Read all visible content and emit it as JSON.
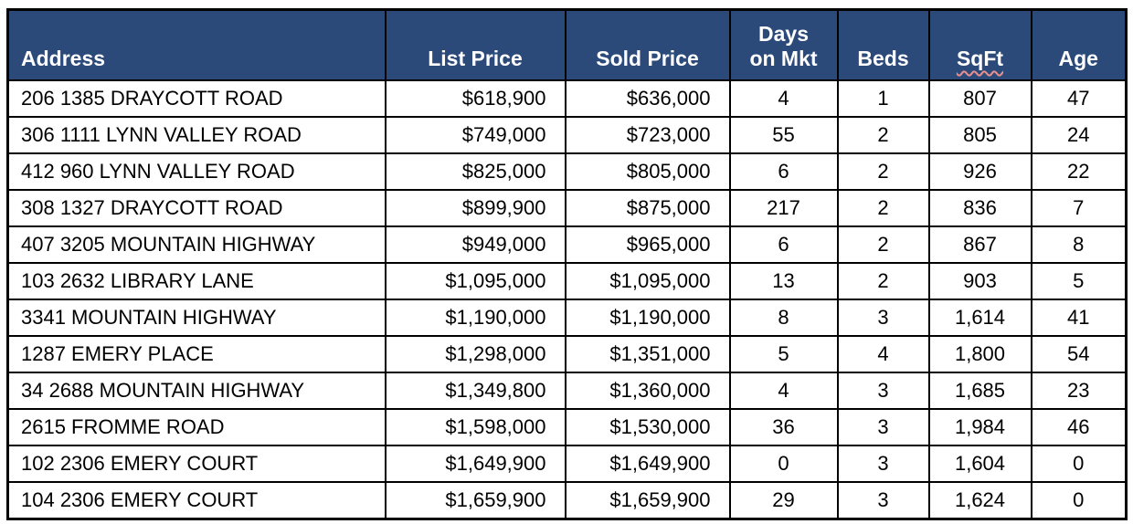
{
  "table": {
    "columns": [
      {
        "name": "address",
        "label": "Address"
      },
      {
        "name": "list-price",
        "label": "List Price"
      },
      {
        "name": "sold-price",
        "label": "Sold Price"
      },
      {
        "name": "days-on-mkt",
        "label": "Days\non Mkt"
      },
      {
        "name": "beds",
        "label": "Beds"
      },
      {
        "name": "sqft",
        "label": "SqFt",
        "spellcheck_underline": true
      },
      {
        "name": "age",
        "label": "Age"
      }
    ],
    "rows": [
      [
        "206 1385 DRAYCOTT ROAD",
        "$618,900",
        "$636,000",
        "4",
        "1",
        "807",
        "47"
      ],
      [
        "306 1111 LYNN VALLEY ROAD",
        "$749,000",
        "$723,000",
        "55",
        "2",
        "805",
        "24"
      ],
      [
        "412 960 LYNN VALLEY ROAD",
        "$825,000",
        "$805,000",
        "6",
        "2",
        "926",
        "22"
      ],
      [
        "308 1327 DRAYCOTT ROAD",
        "$899,900",
        "$875,000",
        "217",
        "2",
        "836",
        "7"
      ],
      [
        "407 3205 MOUNTAIN HIGHWAY",
        "$949,000",
        "$965,000",
        "6",
        "2",
        "867",
        "8"
      ],
      [
        "103 2632 LIBRARY LANE",
        "$1,095,000",
        "$1,095,000",
        "13",
        "2",
        "903",
        "5"
      ],
      [
        "3341 MOUNTAIN HIGHWAY",
        "$1,190,000",
        "$1,190,000",
        "8",
        "3",
        "1,614",
        "41"
      ],
      [
        "1287 EMERY PLACE",
        "$1,298,000",
        "$1,351,000",
        "5",
        "4",
        "1,800",
        "54"
      ],
      [
        "34 2688 MOUNTAIN HIGHWAY",
        "$1,349,800",
        "$1,360,000",
        "4",
        "3",
        "1,685",
        "23"
      ],
      [
        "2615 FROMME ROAD",
        "$1,598,000",
        "$1,530,000",
        "36",
        "3",
        "1,984",
        "46"
      ],
      [
        "102 2306 EMERY COURT",
        "$1,649,900",
        "$1,649,900",
        "0",
        "3",
        "1,604",
        "0"
      ],
      [
        "104 2306 EMERY COURT",
        "$1,659,900",
        "$1,659,900",
        "29",
        "3",
        "1,624",
        "0"
      ]
    ]
  },
  "colors": {
    "header_bg": "#2B4A7A",
    "header_text": "#FFFFFF",
    "border": "#000000",
    "spellcheck_squiggle": "#E9908C"
  }
}
